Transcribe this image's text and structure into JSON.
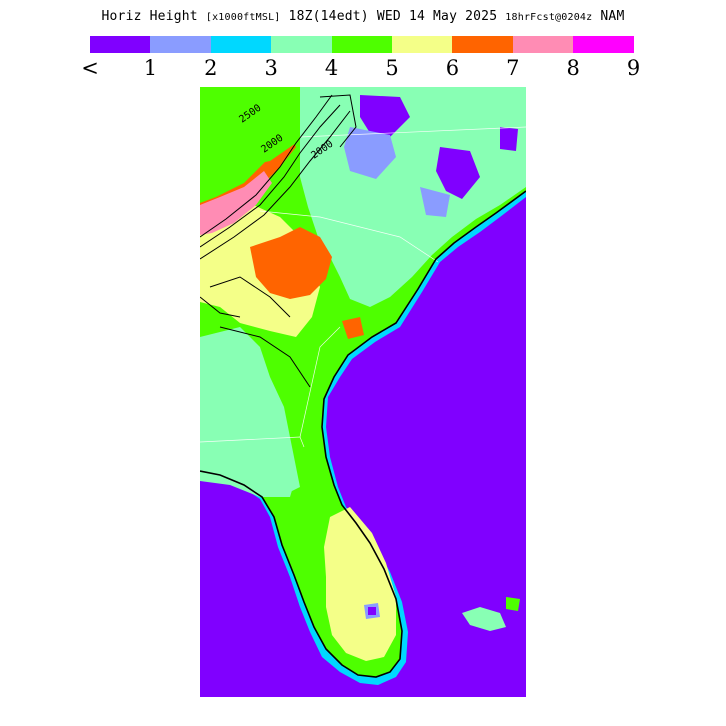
{
  "header": {
    "field": "Horiz Height",
    "units": "[x1000ftMSL]",
    "valid_time": "18Z(14edt) WED 14 May 2025",
    "forecast": "18hrFcst@0204z",
    "model": "NAM"
  },
  "legend": {
    "colors": [
      "#8000ff",
      "#8a9cff",
      "#00d8ff",
      "#88ffb4",
      "#4eff00",
      "#f4ff88",
      "#ff6400",
      "#ff8cb4",
      "#ff00ff"
    ],
    "labels": [
      "<",
      "1",
      "2",
      "3",
      "4",
      "5",
      "6",
      "7",
      "8",
      "9"
    ]
  },
  "map": {
    "region": "Southeast United States",
    "contour_labels": [
      "2500",
      "2000",
      "2000"
    ],
    "colors": {
      "ocean": "#8000ff",
      "level1": "#8a9cff",
      "level2": "#00d8ff",
      "level3": "#88ffb4",
      "level4": "#4eff00",
      "level5": "#f4ff88",
      "level6": "#ff6400",
      "level7": "#ff8cb4"
    }
  }
}
